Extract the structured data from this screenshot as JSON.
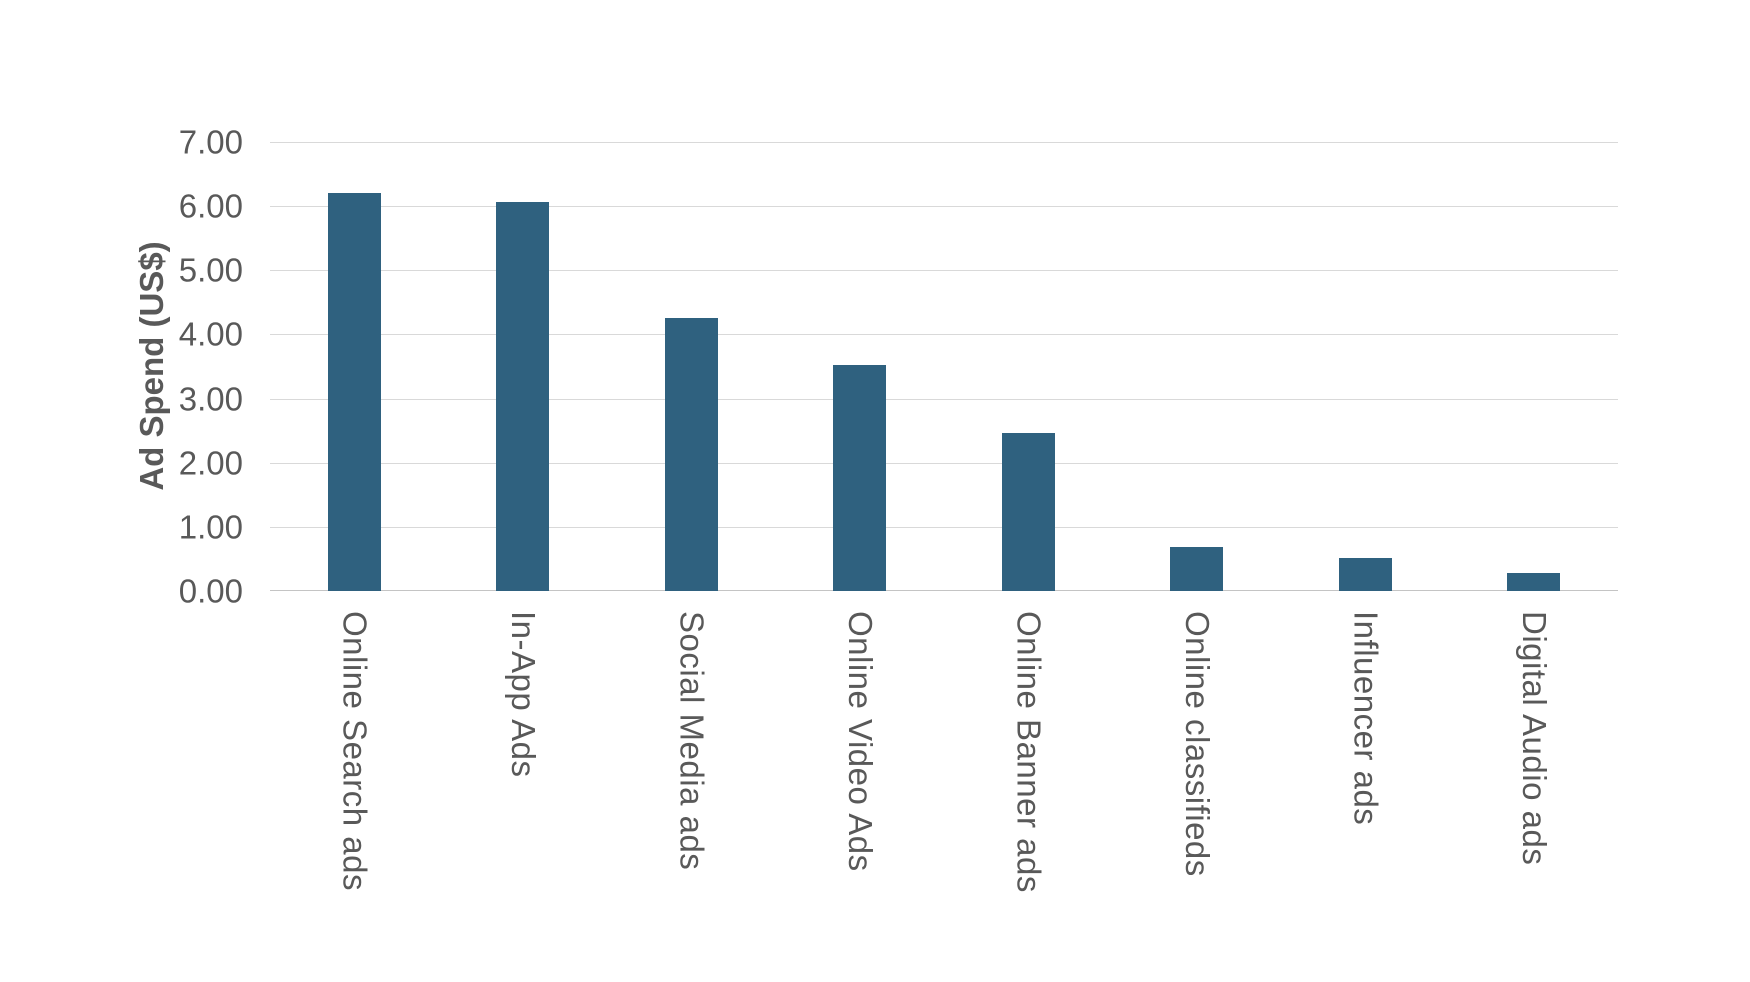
{
  "chart_data": {
    "type": "bar",
    "title": "",
    "categories": [
      "Online Search ads",
      "In-App Ads",
      "Social Media ads",
      "Online Video Ads",
      "Online Banner ads",
      "Online classifieds",
      "Influencer ads",
      "Digital Audio ads"
    ],
    "values": [
      6.2,
      6.07,
      4.26,
      3.52,
      2.47,
      0.69,
      0.52,
      0.28
    ],
    "xlabel": "",
    "ylabel": "Ad Spend (US$)",
    "ylim": [
      0,
      7
    ],
    "ytick_step": 1,
    "ytick_labels": [
      "0.00",
      "1.00",
      "2.00",
      "3.00",
      "4.00",
      "5.00",
      "6.00",
      "7.00"
    ],
    "grid": true,
    "legend": false,
    "colors": {
      "bar_fill": "#2F617F",
      "gridline": "#D9D9D9",
      "axis_line": "#C4C4C4",
      "text": "#595959",
      "background": "#FFFFFF"
    }
  }
}
